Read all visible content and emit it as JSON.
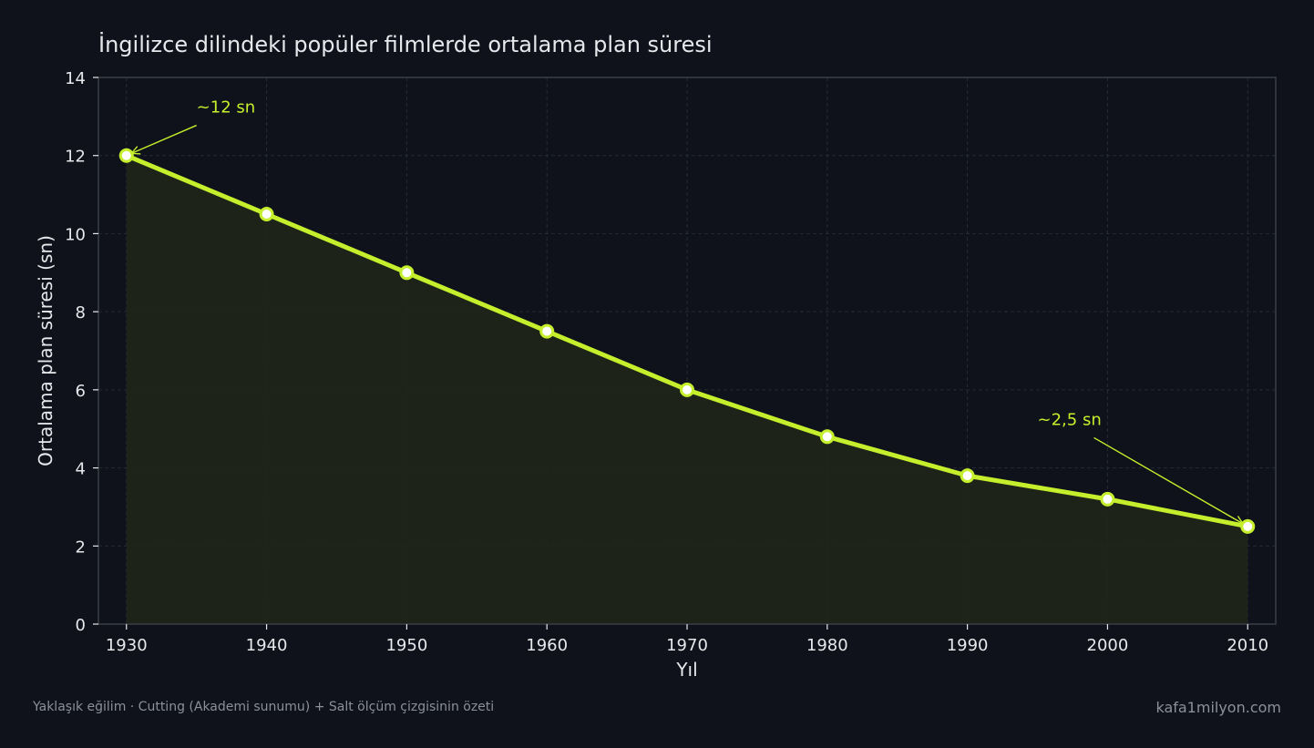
{
  "colors": {
    "background": "#0f121a",
    "line": "#c5ef2c",
    "area": "#20251a",
    "text": "#e6e8ec",
    "muted": "#8c9099",
    "grid": "#262a33",
    "axis": "#3a3e47"
  },
  "chart_data": {
    "type": "line",
    "title": "İngilizce dilindeki popüler filmlerde ortalama plan süresi",
    "xlabel": "Yıl",
    "ylabel": "Ortalama plan süresi (sn)",
    "xlim": [
      1928,
      2012
    ],
    "ylim": [
      0,
      14
    ],
    "x": [
      1930,
      1940,
      1950,
      1960,
      1970,
      1980,
      1990,
      2000,
      2010
    ],
    "values": [
      12,
      10.5,
      9,
      7.5,
      6,
      4.8,
      3.8,
      3.2,
      2.5
    ],
    "xticks": [
      1930,
      1940,
      1950,
      1960,
      1970,
      1980,
      1990,
      2000,
      2010
    ],
    "yticks": [
      0,
      2,
      4,
      6,
      8,
      10,
      12,
      14
    ],
    "grid": true,
    "area_fill": true,
    "annotations": [
      {
        "text": "~12 sn",
        "x": 1930,
        "y": 12,
        "text_x": 1935,
        "text_y": 13.1
      },
      {
        "text": "~2,5 sn",
        "x": 2010,
        "y": 2.5,
        "text_x": 1995,
        "text_y": 5.1
      }
    ]
  },
  "footer": {
    "note": "Yaklaşık eğilim · Cutting (Akademi sunumu) + Salt ölçüm çizgisinin özeti",
    "brand": "kafa1milyon.com"
  }
}
